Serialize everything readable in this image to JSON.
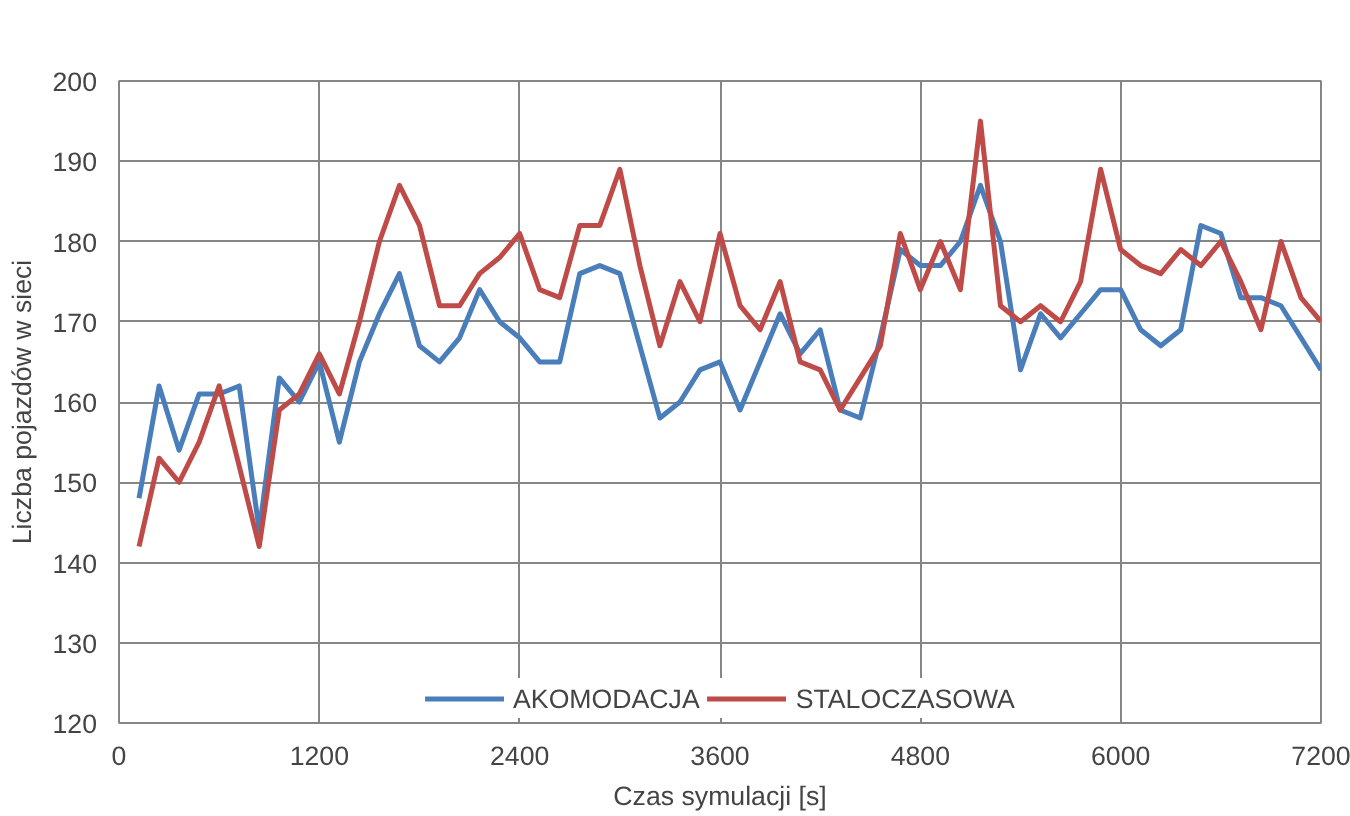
{
  "chart_data": {
    "type": "line",
    "xlabel": "Czas symulacji [s]",
    "ylabel": "Liczba pojazdów w sieci",
    "x": [
      120,
      240,
      360,
      480,
      600,
      720,
      840,
      960,
      1080,
      1200,
      1320,
      1440,
      1560,
      1680,
      1800,
      1920,
      2040,
      2160,
      2280,
      2400,
      2520,
      2640,
      2760,
      2880,
      3000,
      3120,
      3240,
      3360,
      3480,
      3600,
      3720,
      3840,
      3960,
      4080,
      4200,
      4320,
      4440,
      4560,
      4680,
      4800,
      4920,
      5040,
      5160,
      5280,
      5400,
      5520,
      5640,
      5760,
      5880,
      6000,
      6120,
      6240,
      6360,
      6480,
      6600,
      6720,
      6840,
      6960,
      7080,
      7200
    ],
    "series": [
      {
        "name": "AKOMODACJA",
        "color": "#4a7ebb",
        "values": [
          148,
          162,
          154,
          161,
          161,
          162,
          144,
          163,
          160,
          165,
          155,
          165,
          171,
          176,
          167,
          165,
          168,
          174,
          170,
          168,
          165,
          165,
          176,
          177,
          176,
          167,
          158,
          160,
          164,
          165,
          159,
          165,
          171,
          166,
          169,
          159,
          158,
          168,
          179,
          177,
          177,
          180,
          187,
          180,
          164,
          171,
          168,
          171,
          174,
          174,
          169,
          167,
          169,
          182,
          181,
          173,
          173,
          172,
          168,
          164
        ]
      },
      {
        "name": "STALOCZASOWA",
        "color": "#be4b48",
        "values": [
          142,
          153,
          150,
          155,
          162,
          152,
          142,
          159,
          161,
          166,
          161,
          170,
          180,
          187,
          182,
          172,
          172,
          176,
          178,
          181,
          174,
          173,
          182,
          182,
          189,
          177,
          167,
          175,
          170,
          181,
          172,
          169,
          175,
          165,
          164,
          159,
          163,
          167,
          181,
          174,
          180,
          174,
          195,
          172,
          170,
          172,
          170,
          175,
          189,
          179,
          177,
          176,
          179,
          177,
          180,
          175,
          169,
          180,
          173,
          170
        ]
      }
    ],
    "xlim": [
      0,
      7200
    ],
    "xticks": [
      0,
      1200,
      2400,
      3600,
      4800,
      6000,
      7200
    ],
    "ylim": [
      120,
      200
    ],
    "yticks": [
      120,
      130,
      140,
      150,
      160,
      170,
      180,
      190,
      200
    ],
    "grid": true,
    "legend": "bottom",
    "marker": "none",
    "line_style": "solid"
  }
}
